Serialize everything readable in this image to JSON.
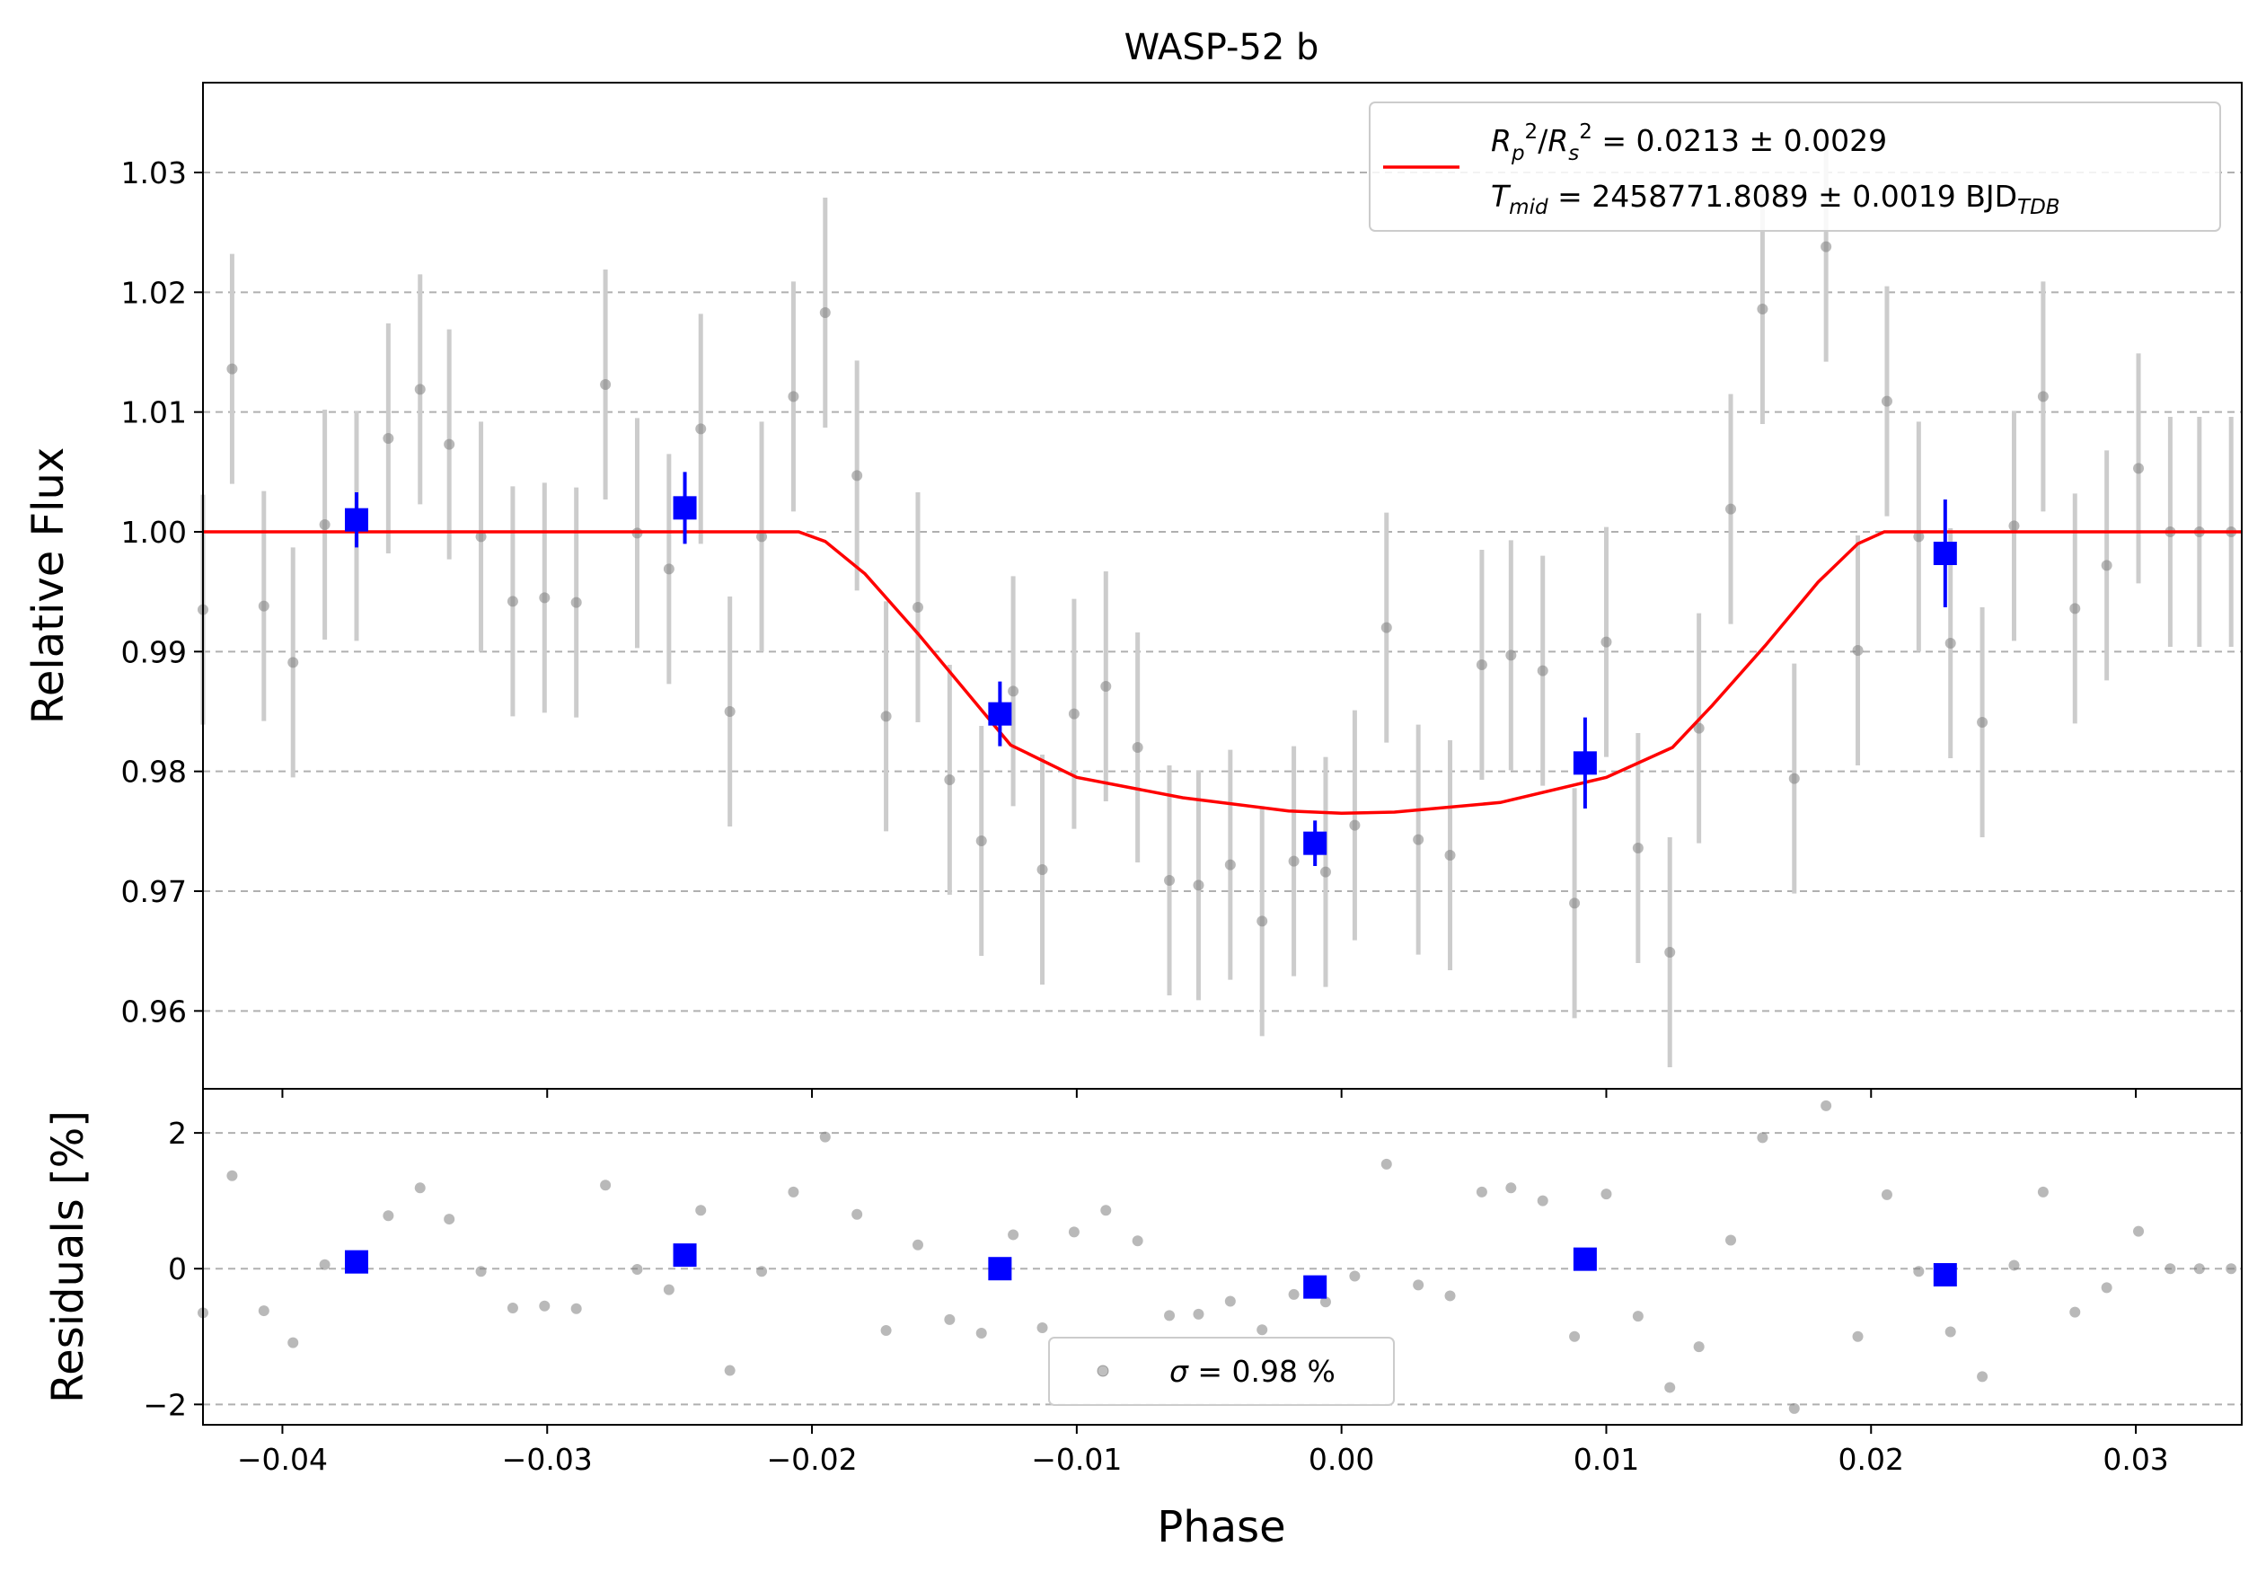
{
  "chart_data": {
    "type": "scatter",
    "title": "WASP-52 b",
    "xlabel": "Phase",
    "ylabel_top": "Relative Flux",
    "ylabel_bottom": "Residuals [%]",
    "xlim": [
      -0.043,
      0.034
    ],
    "ylim_top": [
      0.9535,
      1.0375
    ],
    "ylim_bottom": [
      -2.3,
      2.65
    ],
    "grid": "horizontal dashed",
    "x_ticks": [
      "−0.04",
      "−0.03",
      "−0.02",
      "−0.01",
      "0.00",
      "0.01",
      "0.02",
      "0.03"
    ],
    "y_ticks_top": [
      "0.96",
      "0.97",
      "0.98",
      "0.99",
      "1.00",
      "1.01",
      "1.02",
      "1.03"
    ],
    "y_ticks_bottom": [
      "−2",
      "0",
      "2"
    ],
    "legend_top": {
      "placement": "top-right",
      "line1": {
        "R": "R",
        "p": "p",
        "s": "s",
        "sq": "2",
        "text": " = 0.0213 ± 0.0029"
      },
      "line2": {
        "T": "T",
        "mid": "mid",
        "text": " = 2458771.8089 ± 0.0019 BJD",
        "tdb": "TDB"
      }
    },
    "legend_bottom": {
      "placement": "bottom-center",
      "sigma": "σ",
      "text": " = 0.98 %"
    },
    "colors": {
      "raw": "#808080",
      "raw_err": "#cccccc",
      "binned": "#0000ff",
      "model": "#ff0000",
      "grid": "#b0b0b0"
    },
    "model": {
      "x": [
        -0.043,
        -0.0205,
        -0.0195,
        -0.018,
        -0.016,
        -0.014,
        -0.0125,
        -0.01,
        -0.006,
        -0.002,
        0.0,
        0.002,
        0.006,
        0.01,
        0.0125,
        0.014,
        0.016,
        0.018,
        0.0195,
        0.0205,
        0.034
      ],
      "y": [
        1.0,
        1.0,
        0.9992,
        0.9965,
        0.9915,
        0.9862,
        0.9822,
        0.9795,
        0.9778,
        0.9767,
        0.9765,
        0.9766,
        0.9774,
        0.9795,
        0.982,
        0.9855,
        0.9905,
        0.9958,
        0.999,
        1.0,
        1.0
      ]
    },
    "raw": {
      "x": [
        -0.043,
        -0.0419,
        -0.0407,
        -0.0396,
        -0.0384,
        -0.0372,
        -0.036,
        -0.0348,
        -0.0337,
        -0.0325,
        -0.0313,
        -0.0301,
        -0.0289,
        -0.0278,
        -0.0266,
        -0.0254,
        -0.0242,
        -0.0231,
        -0.0219,
        -0.0207,
        -0.0195,
        -0.0183,
        -0.0172,
        -0.016,
        -0.0148,
        -0.0136,
        -0.0124,
        -0.0113,
        -0.0101,
        -0.0089,
        -0.0077,
        -0.0065,
        -0.0054,
        -0.0042,
        -0.003,
        -0.0018,
        -0.0006,
        0.0005,
        0.0017,
        0.0029,
        0.0041,
        0.0053,
        0.0064,
        0.0076,
        0.0088,
        0.01,
        0.0112,
        0.0124,
        0.0135,
        0.0147,
        0.0159,
        0.0171,
        0.0183,
        0.0195,
        0.0206,
        0.0218,
        0.023,
        0.0242,
        0.0254,
        0.0265,
        0.0277,
        0.0289,
        0.0301,
        0.0313,
        0.0324,
        0.0336
      ],
      "y": [
        0.9935,
        1.0136,
        0.9938,
        0.9891,
        1.0006,
        1.0005,
        1.0078,
        1.0119,
        1.0073,
        0.9996,
        0.9942,
        0.9945,
        0.9941,
        1.0123,
        0.9999,
        0.9969,
        1.0086,
        0.985,
        0.9996,
        1.0113,
        1.0183,
        1.0047,
        0.9846,
        0.9937,
        0.9793,
        0.9742,
        0.9867,
        0.9718,
        0.9848,
        0.9871,
        0.982,
        0.9709,
        0.9705,
        0.9722,
        0.9675,
        0.9725,
        0.9716,
        0.9755,
        0.992,
        0.9743,
        0.973,
        0.9889,
        0.9897,
        0.9884,
        0.969,
        0.9908,
        0.9736,
        0.9649,
        0.9836,
        1.0019,
        1.0186,
        0.9794,
        1.0238,
        0.9901,
        1.0109,
        0.9996,
        0.9907,
        0.9841,
        1.0005,
        1.0113,
        0.9936,
        0.9972,
        1.0053,
        1.0,
        1.0,
        1.0
      ],
      "err": 0.0096,
      "residuals": [
        -0.65,
        1.37,
        -0.62,
        -1.09,
        0.06,
        0.05,
        0.78,
        1.19,
        0.73,
        -0.04,
        -0.58,
        -0.55,
        -0.59,
        1.23,
        -0.01,
        -0.31,
        0.86,
        -1.5,
        -0.04,
        1.13,
        1.94,
        0.8,
        -0.91,
        0.35,
        -0.75,
        -0.95,
        0.5,
        -0.87,
        0.54,
        0.86,
        0.41,
        -0.69,
        -0.67,
        -0.48,
        -0.9,
        -0.38,
        -0.49,
        -0.11,
        1.54,
        -0.24,
        -0.4,
        1.13,
        1.19,
        1.0,
        -1.0,
        1.1,
        -0.7,
        -1.75,
        -1.15,
        0.42,
        1.93,
        -2.06,
        2.4,
        -1.0,
        1.09,
        -0.04,
        -0.93,
        -1.59,
        0.05,
        1.13,
        -0.64,
        -0.28,
        0.55,
        0.0,
        0.0,
        0.0
      ]
    },
    "binned": {
      "x": [
        -0.0372,
        -0.0248,
        -0.0129,
        -0.001,
        0.0092,
        0.0228
      ],
      "y": [
        1.001,
        1.002,
        0.9848,
        0.974,
        0.9807,
        0.9982
      ],
      "err": [
        0.0023,
        0.003,
        0.0027,
        0.0019,
        0.0038,
        0.0045
      ],
      "residuals": [
        0.1,
        0.2,
        0.0,
        -0.27,
        0.14,
        -0.09
      ]
    }
  }
}
